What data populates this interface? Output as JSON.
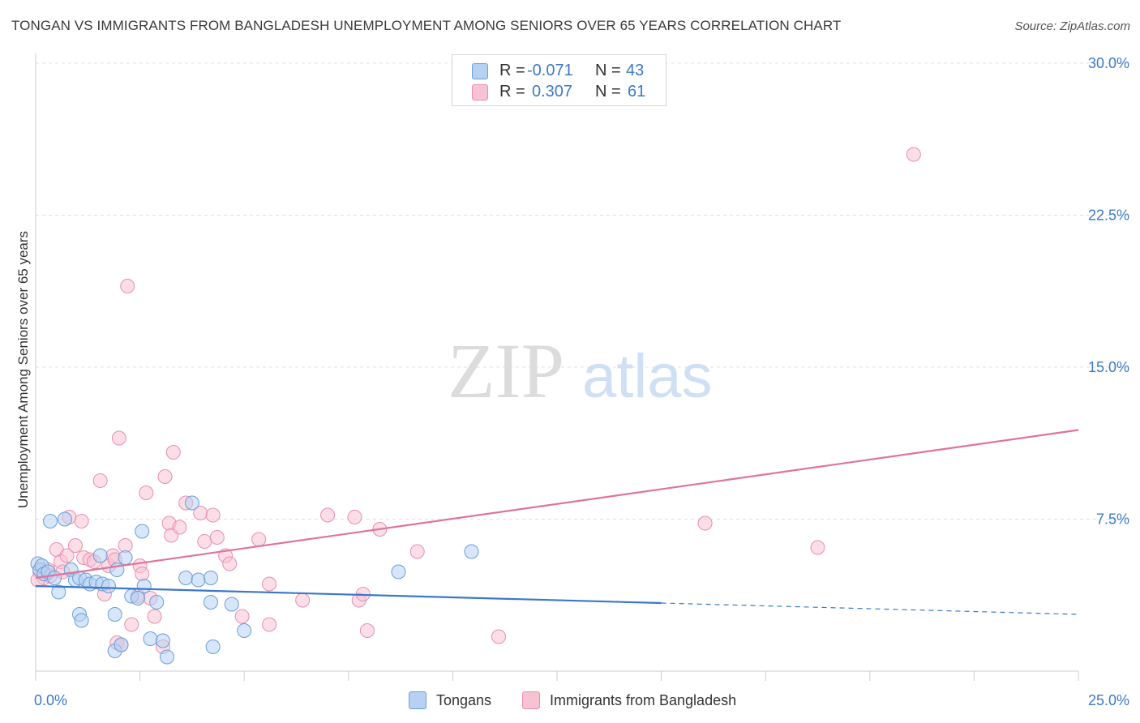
{
  "header": {
    "title": "TONGAN VS IMMIGRANTS FROM BANGLADESH UNEMPLOYMENT AMONG SENIORS OVER 65 YEARS CORRELATION CHART",
    "source": "Source: ZipAtlas.com"
  },
  "watermark": {
    "zip": "ZIP",
    "atlas": "atlas"
  },
  "legend_top": {
    "rows": [
      {
        "r_label": "R =",
        "r_value": "-0.071",
        "n_label": "N =",
        "n_value": "43"
      },
      {
        "r_label": "R =",
        "r_value": "0.307",
        "n_label": "N =",
        "n_value": "61"
      }
    ]
  },
  "legend_bottom": {
    "items": [
      "Tongans",
      "Immigrants from Bangladesh"
    ]
  },
  "colors": {
    "tongans_fill": "#b7d1f2",
    "tongans_stroke": "#6b9fd9",
    "tongans_line": "#3a78c9",
    "bangladesh_fill": "#f7c3d3",
    "bangladesh_stroke": "#e98fae",
    "bangladesh_line": "#e0739b",
    "tick_label": "#3c79c8",
    "grid": "#e0e0e0"
  },
  "chart_data": {
    "type": "scatter",
    "title": "TONGAN VS IMMIGRANTS FROM BANGLADESH UNEMPLOYMENT AMONG SENIORS OVER 65 YEARS CORRELATION CHART",
    "xlabel": "",
    "ylabel": "Unemployment Among Seniors over 65 years",
    "xlim": [
      0,
      25
    ],
    "ylim": [
      0,
      30
    ],
    "x_tick_labels": [
      {
        "value": 0,
        "label": "0.0%"
      },
      {
        "value": 25,
        "label": "25.0%"
      }
    ],
    "y_tick_labels": [
      {
        "value": 7.5,
        "label": "7.5%"
      },
      {
        "value": 15,
        "label": "15.0%"
      },
      {
        "value": 22.5,
        "label": "22.5%"
      },
      {
        "value": 30,
        "label": "30.0%"
      }
    ],
    "grid": true,
    "series": [
      {
        "name": "Tongans",
        "r": -0.071,
        "n": 43,
        "trend": {
          "x0": 0,
          "y0": 4.2,
          "x_solid_end": 15,
          "x1": 25,
          "y1": 2.8
        },
        "points": [
          [
            0.05,
            5.3
          ],
          [
            0.1,
            5.0
          ],
          [
            0.15,
            5.2
          ],
          [
            0.2,
            4.8
          ],
          [
            0.3,
            4.9
          ],
          [
            0.35,
            7.4
          ],
          [
            0.45,
            4.6
          ],
          [
            0.55,
            3.9
          ],
          [
            0.7,
            7.5
          ],
          [
            0.85,
            5.0
          ],
          [
            0.95,
            4.5
          ],
          [
            1.05,
            4.6
          ],
          [
            1.2,
            4.5
          ],
          [
            1.3,
            4.3
          ],
          [
            1.45,
            4.4
          ],
          [
            1.6,
            4.3
          ],
          [
            1.75,
            4.2
          ],
          [
            1.55,
            5.7
          ],
          [
            1.95,
            5.0
          ],
          [
            2.15,
            5.6
          ],
          [
            2.3,
            3.7
          ],
          [
            2.45,
            3.6
          ],
          [
            2.55,
            6.9
          ],
          [
            2.6,
            4.2
          ],
          [
            2.9,
            3.4
          ],
          [
            3.6,
            4.6
          ],
          [
            3.75,
            8.3
          ],
          [
            3.9,
            4.5
          ],
          [
            4.2,
            3.4
          ],
          [
            4.2,
            4.6
          ],
          [
            4.7,
            3.3
          ],
          [
            5.0,
            2.0
          ],
          [
            1.05,
            2.8
          ],
          [
            1.1,
            2.5
          ],
          [
            1.9,
            2.8
          ],
          [
            1.9,
            1.0
          ],
          [
            2.05,
            1.3
          ],
          [
            2.75,
            1.6
          ],
          [
            3.05,
            1.5
          ],
          [
            3.15,
            0.7
          ],
          [
            4.25,
            1.2
          ],
          [
            8.7,
            4.9
          ],
          [
            10.45,
            5.9
          ]
        ]
      },
      {
        "name": "Immigrants from Bangladesh",
        "r": 0.307,
        "n": 61,
        "trend": {
          "x0": 0,
          "y0": 4.6,
          "x1": 25,
          "y1": 11.9
        },
        "points": [
          [
            0.1,
            4.9
          ],
          [
            0.2,
            4.6
          ],
          [
            0.3,
            5.0
          ],
          [
            0.35,
            4.7
          ],
          [
            0.5,
            6.0
          ],
          [
            0.6,
            5.4
          ],
          [
            0.65,
            4.9
          ],
          [
            0.75,
            5.7
          ],
          [
            0.8,
            7.6
          ],
          [
            0.95,
            6.2
          ],
          [
            1.1,
            7.4
          ],
          [
            1.15,
            5.6
          ],
          [
            1.3,
            5.5
          ],
          [
            1.4,
            5.4
          ],
          [
            1.55,
            9.4
          ],
          [
            1.65,
            3.8
          ],
          [
            1.75,
            5.2
          ],
          [
            1.85,
            5.7
          ],
          [
            1.9,
            5.5
          ],
          [
            2.0,
            11.5
          ],
          [
            2.15,
            6.2
          ],
          [
            2.2,
            19.0
          ],
          [
            2.3,
            2.3
          ],
          [
            2.45,
            3.7
          ],
          [
            2.5,
            5.2
          ],
          [
            2.55,
            4.8
          ],
          [
            2.65,
            8.8
          ],
          [
            2.75,
            3.6
          ],
          [
            2.85,
            2.7
          ],
          [
            3.05,
            1.2
          ],
          [
            3.1,
            9.6
          ],
          [
            3.2,
            7.3
          ],
          [
            3.25,
            6.7
          ],
          [
            3.3,
            10.8
          ],
          [
            3.45,
            7.1
          ],
          [
            3.6,
            8.3
          ],
          [
            3.95,
            7.8
          ],
          [
            4.05,
            6.4
          ],
          [
            4.25,
            7.7
          ],
          [
            4.35,
            6.6
          ],
          [
            4.55,
            5.7
          ],
          [
            4.65,
            5.3
          ],
          [
            4.95,
            2.7
          ],
          [
            5.35,
            6.5
          ],
          [
            5.6,
            4.3
          ],
          [
            5.6,
            2.3
          ],
          [
            6.4,
            3.5
          ],
          [
            7.0,
            7.7
          ],
          [
            7.65,
            7.6
          ],
          [
            7.75,
            3.5
          ],
          [
            7.85,
            3.8
          ],
          [
            7.95,
            2.0
          ],
          [
            8.25,
            7.0
          ],
          [
            9.15,
            5.9
          ],
          [
            11.1,
            1.7
          ],
          [
            1.95,
            1.4
          ],
          [
            2.05,
            1.3
          ],
          [
            16.05,
            7.3
          ],
          [
            18.75,
            6.1
          ],
          [
            21.05,
            25.5
          ],
          [
            0.05,
            4.5
          ]
        ]
      }
    ]
  }
}
